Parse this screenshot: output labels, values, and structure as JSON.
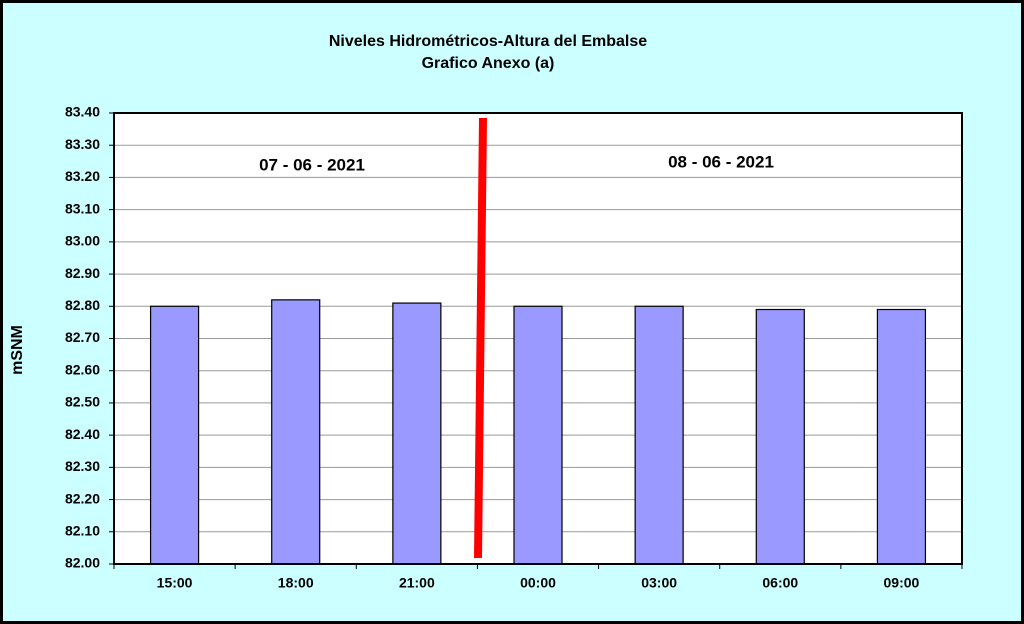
{
  "chart_data": {
    "type": "bar",
    "title": "Niveles Hidrométricos-Altura del Embalse",
    "subtitle": "Grafico Anexo (a)",
    "y_label": "mSNM",
    "annotations": [
      "07 - 06 - 2021",
      "08 - 06 - 2021"
    ],
    "categories": [
      "15:00",
      "18:00",
      "21:00",
      "00:00",
      "03:00",
      "06:00",
      "09:00"
    ],
    "values": [
      82.8,
      82.82,
      82.81,
      82.8,
      82.8,
      82.79,
      82.79
    ],
    "color": "#9999ff",
    "ylim": [
      82.0,
      83.4
    ],
    "yticks": [
      {
        "value": 82.0,
        "label": "82.00"
      },
      {
        "value": 82.1,
        "label": "82.10"
      },
      {
        "value": 82.2,
        "label": "82.20"
      },
      {
        "value": 82.3,
        "label": "82.30"
      },
      {
        "value": 82.4,
        "label": "82.40"
      },
      {
        "value": 82.5,
        "label": "82.50"
      },
      {
        "value": 82.6,
        "label": "82.60"
      },
      {
        "value": 82.7,
        "label": "82.70"
      },
      {
        "value": 82.8,
        "label": "82.80"
      },
      {
        "value": 82.9,
        "label": "82.90"
      },
      {
        "value": 83.0,
        "label": "83.00"
      },
      {
        "value": 83.1,
        "label": "83.10"
      },
      {
        "value": 83.2,
        "label": "83.20"
      },
      {
        "value": 83.3,
        "label": "83.30"
      },
      {
        "value": 83.4,
        "label": "83.40"
      }
    ],
    "grid": true
  }
}
